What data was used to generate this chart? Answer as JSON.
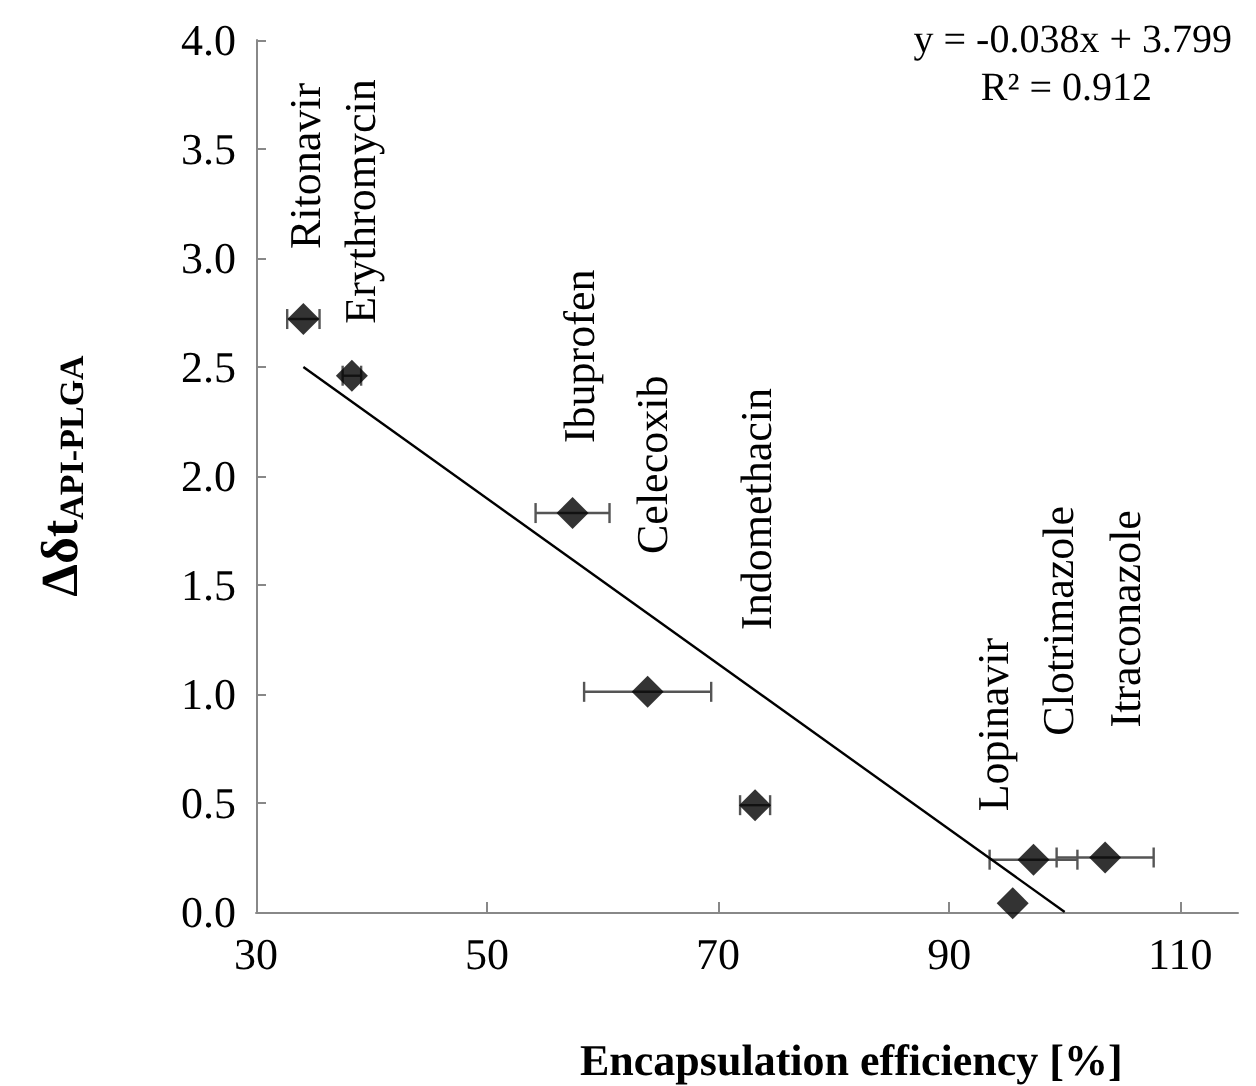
{
  "chart_data": {
    "type": "scatter",
    "xlabel": "Encapsulation efficiency [%]",
    "ylabel": "Δδt$_{API-PLGA}$",
    "series": [
      {
        "color": "#000000",
        "marker": "diamond",
        "x": [
          34.1,
          38.3,
          57.4,
          63.9,
          73.2,
          95.5,
          97.3,
          103.5
        ],
        "values": [
          2.72,
          2.46,
          1.83,
          1.01,
          0.49,
          0.04,
          0.24,
          0.25
        ],
        "xerrors": [
          1.4,
          0.8,
          3.2,
          5.5,
          1.3,
          null,
          3.8,
          4.2
        ]
      },
      {
        "type": "line",
        "color": "#000000",
        "marker": "none",
        "line_style": "solid",
        "x": [
          34.1,
          100
        ],
        "values": [
          2.5,
          0.0
        ]
      }
    ],
    "xlim": [
      30,
      115
    ],
    "xticks": [
      30,
      50,
      70,
      90,
      110
    ],
    "ylim": [
      0,
      4
    ],
    "yticks": [
      {
        "value": 0,
        "label": "0.0"
      },
      0.5,
      {
        "value": 1,
        "label": "1.0"
      },
      1.5,
      {
        "value": 2,
        "label": "2.0"
      },
      2.5,
      {
        "value": 3,
        "label": "3.0"
      },
      3.5,
      {
        "value": 4,
        "label": "4.0"
      }
    ],
    "grid": false,
    "annotations": [
      "y = -0.038x + 3.799",
      "R² = 0.912",
      {
        "text": "Ritonavir",
        "x": 34.1,
        "y": 2.72
      },
      {
        "text": "Erythromycin",
        "x": 38.3,
        "y": 2.46
      },
      {
        "text": "Ibuprofen",
        "x": 57.4,
        "y": 1.83
      },
      "Celecoxib",
      "Indomethacin",
      {
        "text": "Lopinavir",
        "x": 95.5,
        "y": 0.04
      },
      {
        "text": "Clotrimazole",
        "x": 97.3,
        "y": 0.24
      },
      {
        "text": "Itraconazole",
        "x": 103.5,
        "y": 0.25
      }
    ]
  }
}
